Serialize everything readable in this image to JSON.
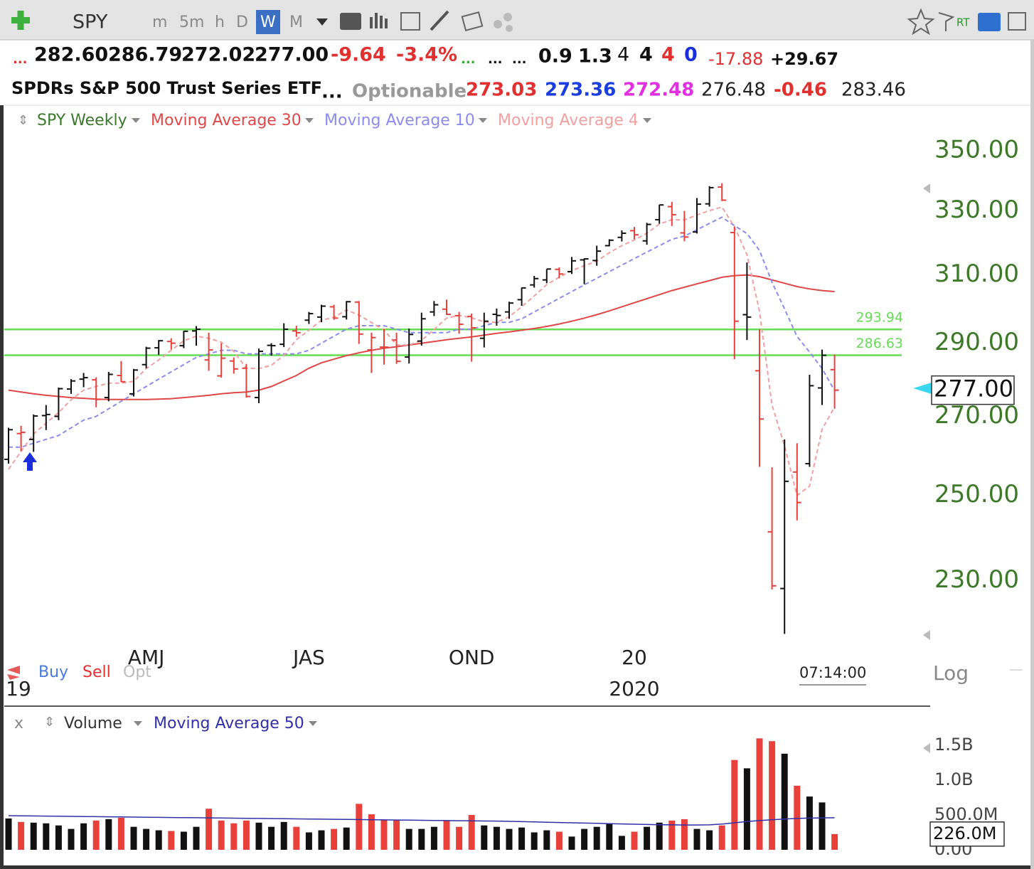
{
  "ui": {
    "toolbar": [
      "SPY",
      "m",
      "5m",
      "h",
      "D",
      "W",
      "M",
      "RT"
    ],
    "quote": [
      "...",
      "282.60",
      "286.79",
      "272.02",
      "277.00",
      "-9.64",
      "-3.4%",
      "...",
      "...",
      "...",
      "0.9",
      "1.3",
      "4",
      "4",
      "4",
      "0",
      "-17.88",
      "+29.67"
    ],
    "info": [
      "SPDRs S&P 500 Trust Series ETF",
      "...",
      "Optionable",
      "273.03",
      "273.36",
      "272.48",
      "276.48",
      "-0.46",
      "283.46"
    ],
    "trade": [
      "Buy",
      "Sell",
      "Opt"
    ],
    "time": "07:14:00",
    "scale": "Log",
    "close_pane": "x"
  },
  "chart_data": [
    {
      "type": "ohlc",
      "name": "SPY Weekly",
      "log": true,
      "up_color": "#111111",
      "down_color": "#e8403a",
      "categories": [
        null,
        null,
        null,
        null,
        null,
        null,
        null,
        null,
        null,
        null,
        null,
        "AMJ",
        null,
        null,
        null,
        null,
        null,
        null,
        null,
        null,
        null,
        null,
        null,
        null,
        "JAS",
        null,
        null,
        null,
        null,
        null,
        null,
        null,
        null,
        null,
        null,
        null,
        null,
        "OND",
        null,
        null,
        null,
        null,
        null,
        null,
        null,
        null,
        null,
        null,
        null,
        null,
        "20",
        null,
        null,
        null,
        null,
        null,
        null,
        null,
        null,
        null,
        null,
        null,
        null,
        null,
        null,
        null,
        null
      ],
      "years": [
        "19",
        null,
        null,
        null,
        null,
        null,
        null,
        null,
        null,
        null,
        null,
        null,
        null,
        null,
        null,
        null,
        null,
        null,
        null,
        null,
        null,
        null,
        null,
        null,
        null,
        null,
        null,
        null,
        null,
        null,
        null,
        null,
        null,
        null,
        null,
        null,
        null,
        null,
        null,
        null,
        null,
        null,
        null,
        null,
        null,
        null,
        null,
        null,
        null,
        null,
        "2020",
        null,
        null,
        null,
        null,
        null,
        null,
        null,
        null,
        null,
        null,
        null,
        null,
        null,
        null,
        null,
        null
      ],
      "open": [
        258.9,
        265.5,
        264.0,
        270.2,
        270.0,
        277.3,
        280.0,
        279.8,
        275.0,
        281.0,
        276.0,
        284.0,
        288.7,
        290.5,
        289.3,
        293.5,
        285.3,
        280.9,
        285.0,
        283.0,
        275.0,
        289.4,
        289.7,
        293.5,
        296.6,
        297.5,
        300.5,
        297.6,
        301.9,
        288.1,
        288.9,
        290.9,
        286.1,
        290.6,
        299.0,
        299.8,
        297.9,
        297.7,
        291.4,
        298.3,
        299.0,
        302.6,
        307.0,
        308.5,
        311.7,
        311.0,
        314.6,
        314.4,
        319.0,
        321.6,
        323.7,
        320.5,
        327.2,
        331.4,
        323.0,
        323.3,
        332.3,
        337.8,
        323.1,
        298.2,
        282.3,
        241.2,
        228.2,
        255.7,
        257.8,
        277.6,
        282.6
      ],
      "high": [
        267.0,
        267.5,
        270.5,
        273.0,
        277.7,
        280.0,
        281.7,
        280.5,
        282.0,
        285.0,
        282.8,
        289.0,
        290.9,
        291.4,
        293.5,
        294.9,
        293.0,
        290.0,
        286.0,
        284.2,
        288.5,
        290.0,
        295.7,
        295.0,
        299.0,
        301.1,
        301.1,
        302.2,
        302.2,
        293.0,
        294.1,
        293.0,
        294.2,
        298.8,
        302.2,
        302.6,
        299.0,
        298.5,
        298.8,
        300.0,
        302.0,
        306.2,
        309.7,
        311.8,
        312.3,
        315.5,
        315.1,
        319.0,
        321.0,
        323.8,
        324.9,
        326.2,
        332.0,
        332.95,
        330.0,
        334.2,
        338.1,
        339.1,
        325.0,
        313.8,
        293.9,
        256.9,
        264.0,
        263.0,
        281.2,
        288.2,
        286.79
      ],
      "low": [
        257.8,
        261.0,
        260.8,
        266.4,
        269.0,
        276.0,
        277.8,
        272.4,
        274.0,
        279.2,
        275.3,
        283.0,
        286.7,
        288.2,
        288.6,
        289.3,
        282.3,
        280.4,
        281.5,
        275.0,
        273.5,
        286.5,
        288.9,
        291.8,
        295.5,
        296.0,
        296.7,
        296.8,
        289.8,
        281.7,
        284.0,
        284.2,
        284.3,
        289.3,
        297.8,
        298.1,
        292.7,
        284.8,
        288.8,
        295.0,
        297.0,
        300.8,
        306.2,
        307.5,
        309.0,
        310.3,
        307.2,
        312.8,
        318.8,
        320.3,
        321.0,
        319.3,
        325.9,
        325.2,
        320.4,
        322.8,
        331.4,
        333.2,
        285.5,
        290.9,
        257.0,
        228.0,
        218.3,
        243.9,
        257.0,
        273.0,
        272.02
      ],
      "close": [
        266.5,
        265.8,
        270.1,
        270.5,
        277.4,
        279.5,
        280.4,
        274.5,
        281.3,
        279.3,
        282.5,
        288.6,
        290.7,
        290.0,
        293.4,
        294.0,
        288.1,
        285.8,
        282.8,
        275.3,
        287.7,
        289.3,
        294.0,
        293.0,
        298.5,
        300.7,
        297.2,
        302.0,
        292.6,
        291.6,
        288.9,
        284.9,
        292.5,
        297.0,
        301.1,
        298.3,
        295.4,
        294.4,
        296.3,
        297.97,
        301.6,
        306.1,
        308.9,
        311.8,
        310.3,
        314.3,
        314.9,
        317.3,
        320.7,
        322.9,
        322.4,
        325.7,
        331.95,
        328.8,
        321.7,
        332.2,
        337.6,
        333.5,
        296.3,
        297.5,
        269.3,
        228.8,
        253.4,
        248.2,
        278.2,
        286.6,
        277.0
      ],
      "series": [
        {
          "name": "Moving Average 30",
          "color": "#e04848",
          "style": "solid",
          "values": [
            277,
            276.5,
            276,
            275.6,
            275.3,
            275,
            274.8,
            274.6,
            274.5,
            274.5,
            274.5,
            274.5,
            274.6,
            274.7,
            275,
            275.3,
            275.6,
            276,
            276.3,
            276.5,
            277,
            278,
            279.5,
            281,
            283,
            284.5,
            285.5,
            286.5,
            287.3,
            288,
            288.6,
            289,
            289.5,
            290,
            290.5,
            291,
            291.4,
            291.8,
            292.3,
            292.8,
            293.2,
            293.7,
            294.2,
            294.8,
            295.5,
            296.3,
            297.2,
            298.2,
            299.3,
            300.5,
            301.7,
            302.9,
            304.1,
            305.3,
            306.3,
            307.3,
            308.3,
            309.3,
            309.8,
            310,
            309.5,
            308.5,
            307.5,
            306.5,
            305.8,
            305.3,
            305
          ]
        },
        {
          "name": "Moving Average 10",
          "color": "#8c8cee",
          "style": "dashed",
          "values": [
            262,
            262,
            263,
            264,
            265,
            267,
            269,
            270,
            272,
            274,
            276,
            278,
            280,
            282,
            284,
            286,
            287,
            288,
            288,
            287,
            287,
            287,
            287,
            287,
            288,
            290,
            292,
            294,
            295,
            295,
            295,
            294,
            293,
            293,
            293,
            293,
            294,
            294,
            295,
            296,
            296,
            297,
            299,
            301,
            303,
            305,
            307,
            309,
            311,
            313,
            315,
            317,
            319,
            321,
            322,
            324,
            326,
            328,
            325.3,
            322.8,
            317.5,
            307.8,
            299.9,
            291.9,
            287.5,
            282.9,
            276.9
          ]
        },
        {
          "name": "Moving Average 4",
          "color": "#f2a0a0",
          "style": "dashed",
          "values": [
            256.4,
            260.9,
            265.4,
            268.2,
            271.0,
            274.4,
            277.0,
            278.0,
            278.9,
            278.9,
            279.4,
            282.9,
            285.3,
            288.0,
            290.7,
            292.0,
            291.4,
            290.3,
            287.7,
            283.0,
            282.9,
            283.8,
            286.6,
            291.0,
            293.7,
            296.6,
            297.4,
            299.6,
            298.1,
            295.9,
            293.8,
            289.5,
            289.5,
            290.8,
            293.9,
            297.2,
            298.0,
            297.3,
            296.1,
            296.0,
            297.6,
            300.5,
            303.7,
            307.1,
            309.3,
            311.3,
            312.8,
            314.2,
            316.8,
            319.0,
            320.8,
            322.9,
            325.8,
            327.2,
            327.1,
            328.7,
            330.1,
            331.3,
            324.9,
            316.2,
            299.2,
            273.0,
            262.3,
            249.9,
            252.2,
            266.6,
            272.5
          ]
        }
      ],
      "hlines": [
        293.94,
        286.63
      ],
      "hline_color": "#66dd55",
      "ylim": [
        217,
        365.4
      ],
      "yticks": [
        {
          "value": 350,
          "label": "350.00"
        },
        {
          "value": 330,
          "label": "330.00"
        },
        {
          "value": 310,
          "label": "310.00"
        },
        {
          "value": 290,
          "label": "290.00"
        },
        {
          "value": 270,
          "label": "270.00"
        },
        {
          "value": 250,
          "label": "250.00"
        },
        {
          "value": 230,
          "label": "230.00"
        }
      ]
    },
    {
      "type": "bar",
      "name": "Volume",
      "values": [
        450000000,
        400000000,
        390000000,
        380000000,
        350000000,
        300000000,
        380000000,
        420000000,
        440000000,
        460000000,
        330000000,
        300000000,
        280000000,
        270000000,
        260000000,
        330000000,
        590000000,
        420000000,
        380000000,
        420000000,
        390000000,
        330000000,
        400000000,
        330000000,
        250000000,
        280000000,
        300000000,
        320000000,
        660000000,
        510000000,
        430000000,
        430000000,
        300000000,
        300000000,
        330000000,
        420000000,
        330000000,
        500000000,
        350000000,
        330000000,
        300000000,
        320000000,
        250000000,
        280000000,
        260000000,
        190000000,
        300000000,
        330000000,
        380000000,
        200000000,
        260000000,
        330000000,
        390000000,
        420000000,
        440000000,
        300000000,
        280000000,
        350000000,
        1290000000,
        1170000000,
        1600000000,
        1560000000,
        1380000000,
        920000000,
        765000000,
        680000000,
        226000000
      ],
      "current_label": "226.0M",
      "series": [
        {
          "name": "Moving Average 50",
          "color": "#3030a8",
          "values": [
            490000000,
            488000000,
            486000000,
            484000000,
            482000000,
            480000000,
            478000000,
            476000000,
            474000000,
            472000000,
            470000000,
            468000000,
            466000000,
            464000000,
            462000000,
            460000000,
            458000000,
            456000000,
            454000000,
            452000000,
            450000000,
            448000000,
            446000000,
            444000000,
            442000000,
            440000000,
            438000000,
            436000000,
            434000000,
            432000000,
            430000000,
            428000000,
            426000000,
            424000000,
            422000000,
            420000000,
            418000000,
            416000000,
            414000000,
            412000000,
            408000000,
            404000000,
            400000000,
            396000000,
            392000000,
            388000000,
            384000000,
            380000000,
            376000000,
            372000000,
            368000000,
            364000000,
            360000000,
            358000000,
            356000000,
            356000000,
            358000000,
            370000000,
            388000000,
            405000000,
            420000000,
            432000000,
            442000000,
            450000000,
            455000000,
            458000000,
            460000000
          ]
        }
      ],
      "ylim": [
        0,
        1940000000
      ],
      "yticks": [
        {
          "value": 0,
          "label": "0.00"
        },
        {
          "value": 500000000,
          "label": "500.0M"
        },
        {
          "value": 1000000000,
          "label": "1.0B"
        },
        {
          "value": 1500000000,
          "label": "1.5B"
        }
      ]
    }
  ]
}
